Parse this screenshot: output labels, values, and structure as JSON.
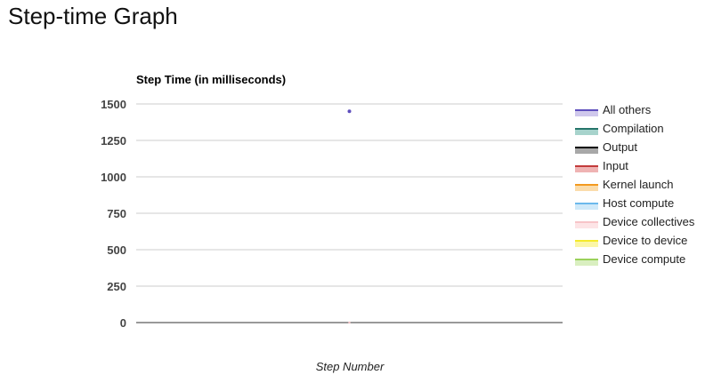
{
  "page": {
    "title": "Step-time Graph"
  },
  "chart_data": {
    "type": "area",
    "title": "Step Time (in milliseconds)",
    "xlabel": "Step Number",
    "ylabel": "",
    "ylim": [
      0,
      1500
    ],
    "yticks": [
      0,
      250,
      500,
      750,
      1000,
      1250,
      1500
    ],
    "grid": true,
    "legend_position": "right",
    "stacked": true,
    "x": [
      0
    ],
    "series": [
      {
        "name": "All others",
        "color": "#5e4fbd",
        "fill": "#cfc8ec",
        "values": [
          1450
        ]
      },
      {
        "name": "Compilation",
        "color": "#26766b",
        "fill": "#a7d3cc",
        "values": [
          0
        ]
      },
      {
        "name": "Output",
        "color": "#000000",
        "fill": "#a8a8a8",
        "values": [
          0
        ]
      },
      {
        "name": "Input",
        "color": "#c23b3b",
        "fill": "#efb3b3",
        "values": [
          0
        ]
      },
      {
        "name": "Kernel launch",
        "color": "#f39a1f",
        "fill": "#fbdcab",
        "values": [
          0
        ]
      },
      {
        "name": "Host compute",
        "color": "#6bb9ec",
        "fill": "#cfe9f9",
        "values": [
          0
        ]
      },
      {
        "name": "Device collectives",
        "color": "#f7c4c8",
        "fill": "#fde4e6",
        "values": [
          0
        ]
      },
      {
        "name": "Device to device",
        "color": "#f4ea2a",
        "fill": "#fbf6a6",
        "values": [
          0
        ]
      },
      {
        "name": "Device compute",
        "color": "#9bd15a",
        "fill": "#d9efc0",
        "values": [
          0
        ]
      }
    ]
  }
}
